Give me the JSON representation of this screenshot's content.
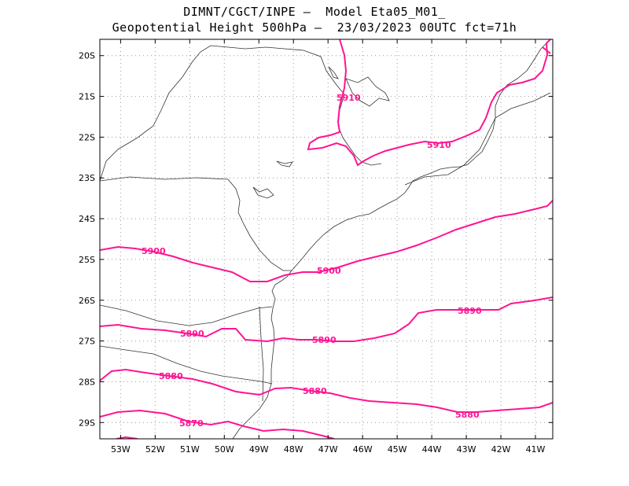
{
  "title": {
    "line1": "DIMNT/CGCT/INPE –  Model Eta05_M01_",
    "line2": "Geopotential Height 500hPa –  23/03/2023 00UTC fct=71h"
  },
  "colors": {
    "contour": "#ff1493",
    "coast": "#333333",
    "grid": "#999999"
  },
  "map": {
    "lon_range": [
      -53.6,
      -40.5
    ],
    "lat_range": [
      -29.4,
      -19.6
    ],
    "lat_ticks": [
      "20S",
      "21S",
      "22S",
      "23S",
      "24S",
      "25S",
      "26S",
      "27S",
      "28S",
      "29S"
    ],
    "lon_ticks": [
      "53W",
      "52W",
      "51W",
      "50W",
      "49W",
      "48W",
      "47W",
      "46W",
      "45W",
      "44W",
      "43W",
      "42W",
      "41W"
    ],
    "contour_labels": [
      "5910",
      "5910",
      "5900",
      "5900",
      "5890",
      "5890",
      "5890",
      "5880",
      "5880",
      "5880",
      "5870"
    ]
  }
}
